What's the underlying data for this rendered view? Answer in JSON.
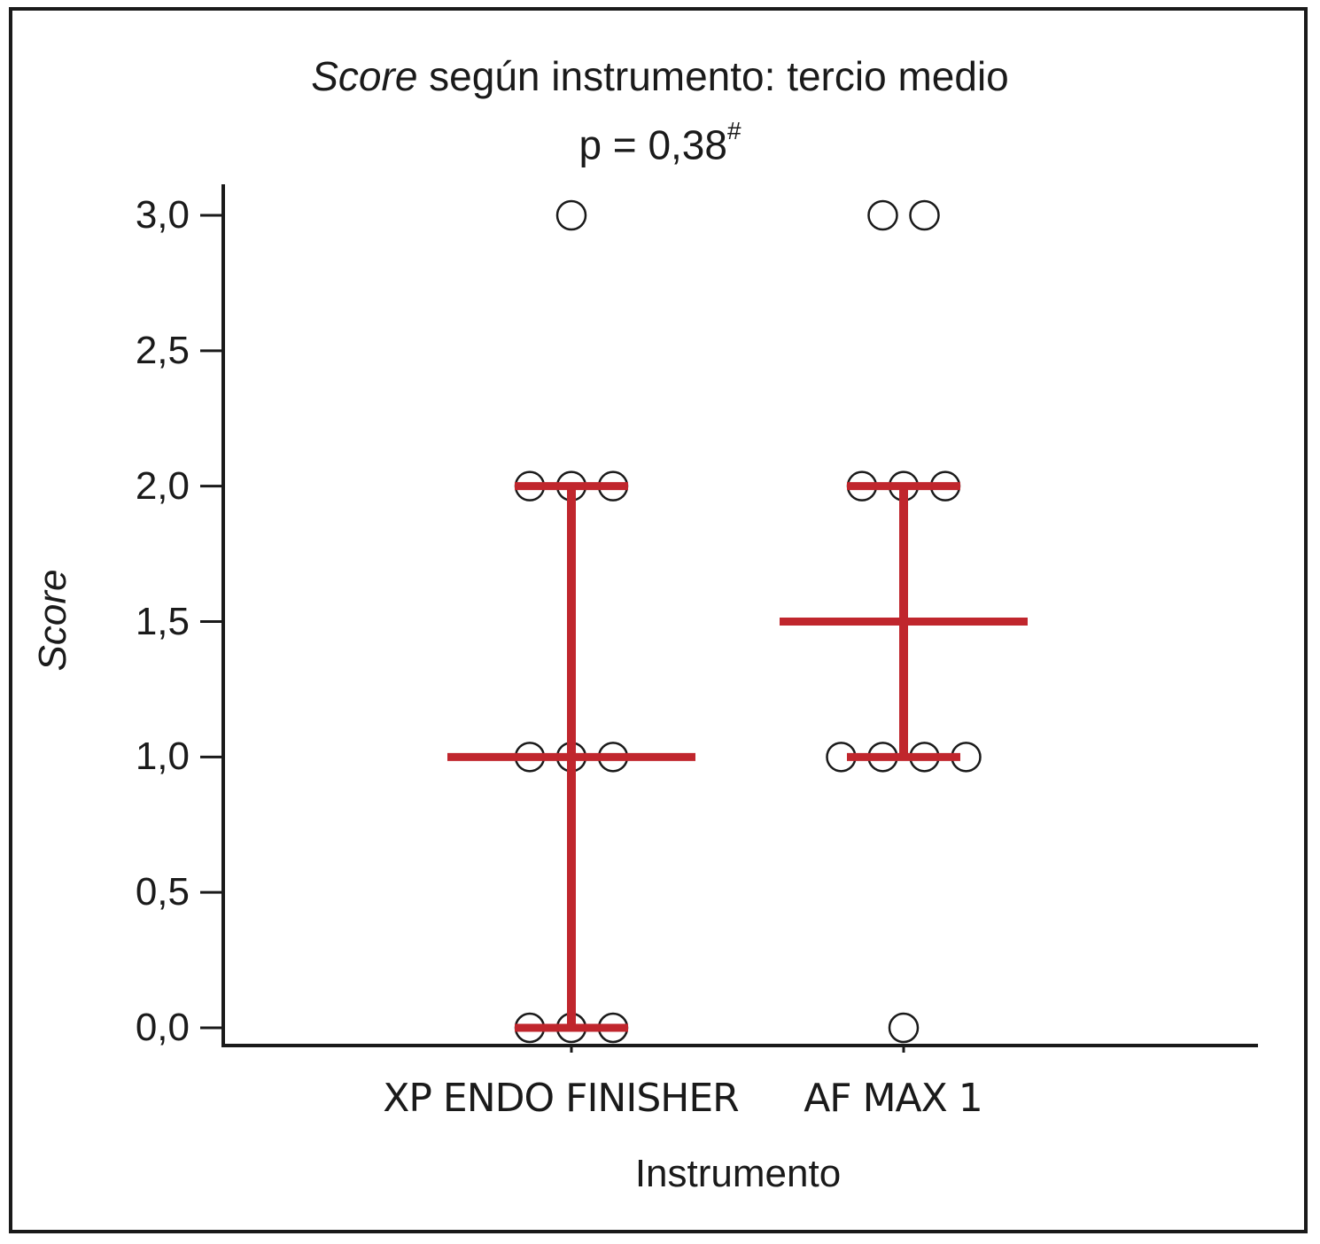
{
  "chart_data": {
    "type": "scatter",
    "title_italic": "Score",
    "title_rest": " según instrumento: tercio medio",
    "subtitle": "p = 0,38",
    "subtitle_sup": "#",
    "xlabel": "Instrumento",
    "ylabel": "Score",
    "ylim": [
      0,
      3
    ],
    "yticks": [
      "0,0",
      "0,5",
      "1,0",
      "1,5",
      "2,0",
      "2,5",
      "3,0"
    ],
    "ytick_values": [
      0,
      0.5,
      1,
      1.5,
      2,
      2.5,
      3
    ],
    "categories": [
      "XP ENDO FINISHER",
      "AF MAX 1"
    ],
    "points": [
      {
        "category": "XP ENDO FINISHER",
        "values": [
          3,
          2,
          2,
          2,
          1,
          1,
          1,
          0,
          0,
          0
        ]
      },
      {
        "category": "AF MAX 1",
        "values": [
          3,
          3,
          2,
          2,
          2,
          1,
          1,
          1,
          1,
          0
        ]
      }
    ],
    "summary": [
      {
        "category": "XP ENDO FINISHER",
        "median": 1,
        "q1": 0,
        "q3": 2
      },
      {
        "category": "AF MAX 1",
        "median": 1.5,
        "q1": 1,
        "q3": 2
      }
    ],
    "marker_color": "#ffffff",
    "summary_color": "#c0262d",
    "grid": false
  }
}
